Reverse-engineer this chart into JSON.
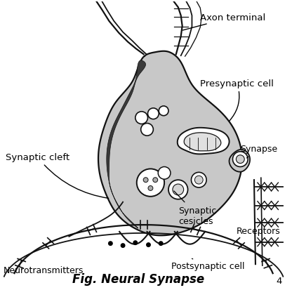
{
  "title": "Fig. Neural Synapse",
  "labels": {
    "axon_terminal": "Axon terminal",
    "presynaptic_cell": "Presynaptic cell",
    "synaptic_cleft": "Synaptic cleft",
    "synaptic_vesicles": "Synaptic\ncesicles",
    "synapse": "Synapse",
    "receptors": "Receptors",
    "postsynaptic_cell": "Postsynaptic cell",
    "neurotransmitters": "Neurotransmitters"
  },
  "bg_color": "#ffffff",
  "cell_fill": "#c8c8c8",
  "cell_edge": "#111111",
  "fig_number": "4",
  "title_fontsize": 12,
  "label_fontsize": 9.5
}
